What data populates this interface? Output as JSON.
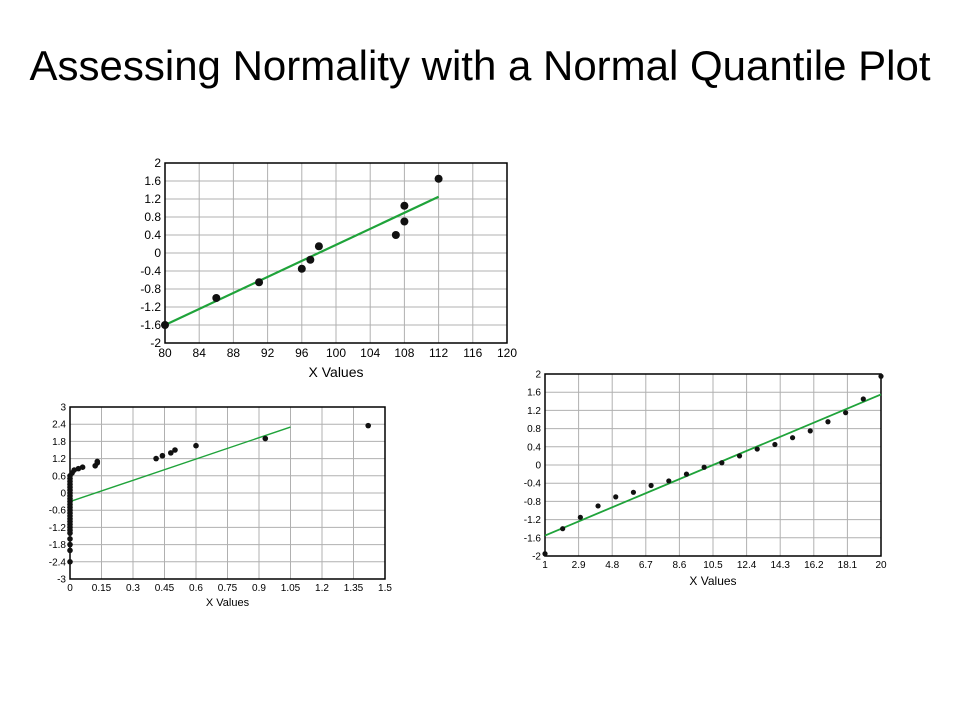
{
  "slide": {
    "title": "Assessing Normality with a Normal Quantile Plot"
  },
  "colors": {
    "fit_line": "#1fa33a",
    "points": "#111111",
    "grid": "#b0b0b0",
    "frame": "#000000",
    "background": "#ffffff"
  },
  "chart_data": [
    {
      "type": "scatter",
      "title": "",
      "xlabel": "X Values",
      "ylabel": "",
      "xlim": [
        80,
        120
      ],
      "ylim": [
        -2,
        2
      ],
      "x_ticks": [
        "80",
        "84",
        "88",
        "92",
        "96",
        "100",
        "104",
        "108",
        "112",
        "116",
        "120"
      ],
      "y_ticks": [
        "2",
        "1.6",
        "1.2",
        "0.8",
        "0.4",
        "0",
        "-0.4",
        "-0.8",
        "-1.2",
        "-1.6",
        "-2"
      ],
      "grid": true,
      "points": [
        {
          "x": 80,
          "y": -1.6
        },
        {
          "x": 86,
          "y": -1.0
        },
        {
          "x": 91,
          "y": -0.65
        },
        {
          "x": 96,
          "y": -0.35
        },
        {
          "x": 97,
          "y": -0.15
        },
        {
          "x": 98,
          "y": 0.15
        },
        {
          "x": 107,
          "y": 0.4
        },
        {
          "x": 108,
          "y": 1.05
        },
        {
          "x": 108,
          "y": 0.7
        },
        {
          "x": 112,
          "y": 1.65
        }
      ],
      "fit_line": [
        {
          "x": 80,
          "y": -1.6
        },
        {
          "x": 112,
          "y": 1.25
        }
      ]
    },
    {
      "type": "scatter",
      "title": "",
      "xlabel": "X Values",
      "ylabel": "",
      "xlim": [
        0,
        1.5
      ],
      "ylim": [
        -3,
        3
      ],
      "x_ticks": [
        "0",
        "0.15",
        "0.3",
        "0.45",
        "0.6",
        "0.75",
        "0.9",
        "1.05",
        "1.2",
        "1.35",
        "1.5"
      ],
      "y_ticks": [
        "3",
        "2.4",
        "1.8",
        "1.2",
        "0.6",
        "0",
        "-0.6",
        "-1.2",
        "-1.8",
        "-2.4",
        "-3"
      ],
      "grid": true,
      "points": [
        {
          "x": 0,
          "y": -2.4
        },
        {
          "x": 0,
          "y": -2.0
        },
        {
          "x": 0,
          "y": -1.8
        },
        {
          "x": 0,
          "y": -1.6
        },
        {
          "x": 0,
          "y": -1.4
        },
        {
          "x": 0,
          "y": -1.3
        },
        {
          "x": 0,
          "y": -1.2
        },
        {
          "x": 0,
          "y": -1.1
        },
        {
          "x": 0,
          "y": -1.0
        },
        {
          "x": 0,
          "y": -0.9
        },
        {
          "x": 0,
          "y": -0.8
        },
        {
          "x": 0,
          "y": -0.7
        },
        {
          "x": 0,
          "y": -0.6
        },
        {
          "x": 0,
          "y": -0.5
        },
        {
          "x": 0,
          "y": -0.4
        },
        {
          "x": 0,
          "y": -0.3
        },
        {
          "x": 0,
          "y": -0.2
        },
        {
          "x": 0,
          "y": -0.1
        },
        {
          "x": 0,
          "y": 0.0
        },
        {
          "x": 0,
          "y": 0.1
        },
        {
          "x": 0,
          "y": 0.2
        },
        {
          "x": 0,
          "y": 0.3
        },
        {
          "x": 0,
          "y": 0.4
        },
        {
          "x": 0,
          "y": 0.5
        },
        {
          "x": 0,
          "y": 0.6
        },
        {
          "x": 0.01,
          "y": 0.7
        },
        {
          "x": 0.02,
          "y": 0.8
        },
        {
          "x": 0.04,
          "y": 0.85
        },
        {
          "x": 0.06,
          "y": 0.9
        },
        {
          "x": 0.12,
          "y": 0.95
        },
        {
          "x": 0.13,
          "y": 1.05
        },
        {
          "x": 0.13,
          "y": 1.1
        },
        {
          "x": 0.41,
          "y": 1.2
        },
        {
          "x": 0.44,
          "y": 1.3
        },
        {
          "x": 0.48,
          "y": 1.4
        },
        {
          "x": 0.5,
          "y": 1.5
        },
        {
          "x": 0.6,
          "y": 1.65
        },
        {
          "x": 0.93,
          "y": 1.9
        },
        {
          "x": 1.42,
          "y": 2.35
        }
      ],
      "fit_line": [
        {
          "x": 0,
          "y": -0.3
        },
        {
          "x": 1.05,
          "y": 2.3
        }
      ]
    },
    {
      "type": "scatter",
      "title": "",
      "xlabel": "X Values",
      "ylabel": "",
      "xlim": [
        1,
        20
      ],
      "ylim": [
        -2,
        2
      ],
      "x_ticks": [
        "1",
        "2.9",
        "4.8",
        "6.7",
        "8.6",
        "10.5",
        "12.4",
        "14.3",
        "16.2",
        "18.1",
        "20"
      ],
      "y_ticks": [
        "2",
        "1.6",
        "1.2",
        "0.8",
        "0.4",
        "0",
        "-0.4",
        "-0.8",
        "-1.2",
        "-1.6",
        "-2"
      ],
      "grid": true,
      "points": [
        {
          "x": 1,
          "y": -1.95
        },
        {
          "x": 2,
          "y": -1.4
        },
        {
          "x": 3,
          "y": -1.15
        },
        {
          "x": 4,
          "y": -0.9
        },
        {
          "x": 5,
          "y": -0.7
        },
        {
          "x": 6,
          "y": -0.6
        },
        {
          "x": 7,
          "y": -0.45
        },
        {
          "x": 8,
          "y": -0.35
        },
        {
          "x": 9,
          "y": -0.2
        },
        {
          "x": 10,
          "y": -0.05
        },
        {
          "x": 11,
          "y": 0.05
        },
        {
          "x": 12,
          "y": 0.2
        },
        {
          "x": 13,
          "y": 0.35
        },
        {
          "x": 14,
          "y": 0.45
        },
        {
          "x": 15,
          "y": 0.6
        },
        {
          "x": 16,
          "y": 0.75
        },
        {
          "x": 17,
          "y": 0.95
        },
        {
          "x": 18,
          "y": 1.15
        },
        {
          "x": 19,
          "y": 1.45
        },
        {
          "x": 20,
          "y": 1.95
        }
      ],
      "fit_line": [
        {
          "x": 1,
          "y": -1.55
        },
        {
          "x": 20,
          "y": 1.55
        }
      ]
    }
  ]
}
